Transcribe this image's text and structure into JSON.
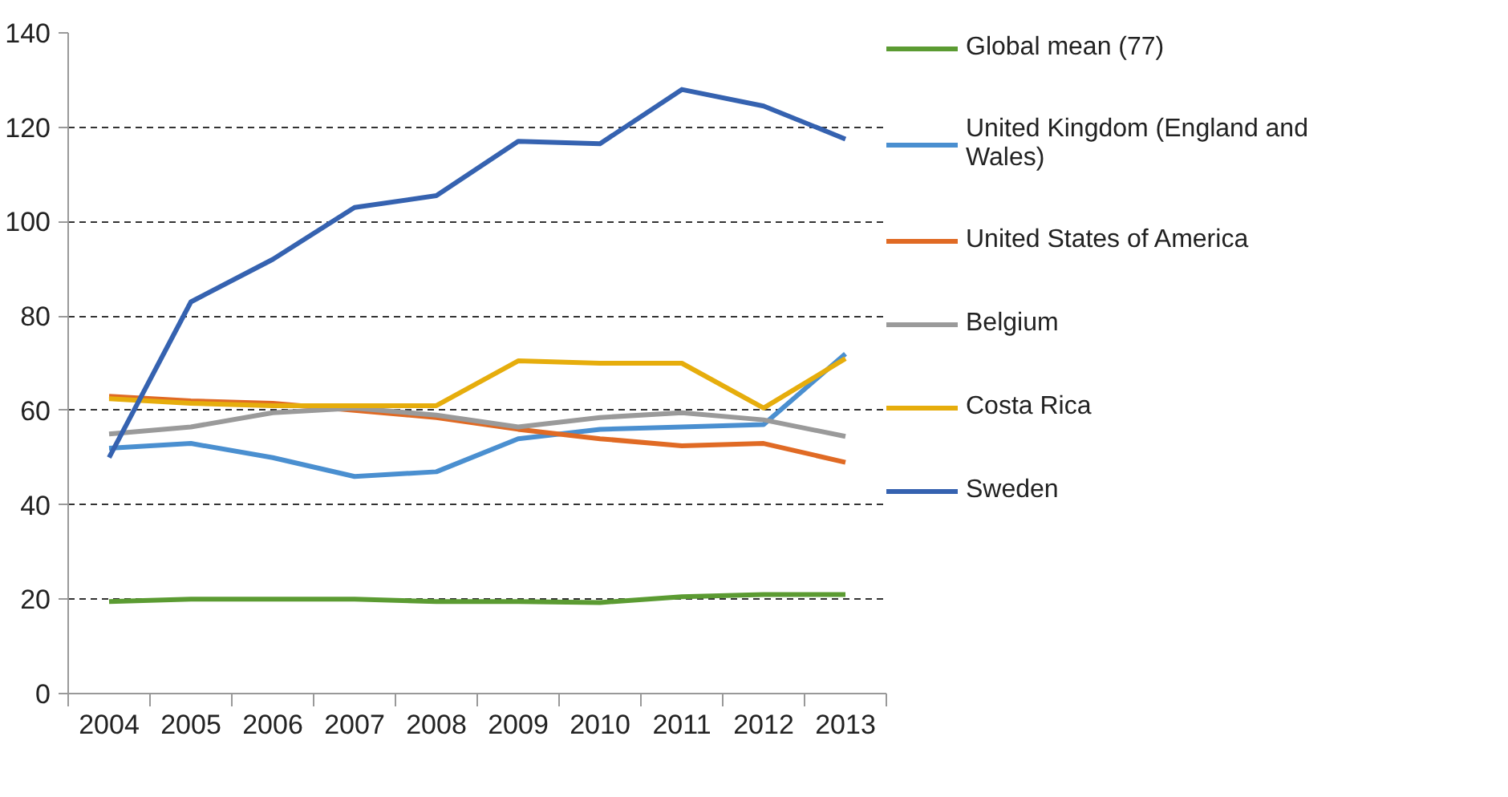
{
  "chart_data": {
    "type": "line",
    "categories": [
      "2004",
      "2005",
      "2006",
      "2007",
      "2008",
      "2009",
      "2010",
      "2011",
      "2012",
      "2013"
    ],
    "ylim": [
      0,
      140
    ],
    "yticks": [
      0,
      20,
      40,
      60,
      80,
      100,
      120,
      140
    ],
    "grid": "y",
    "legend": "right",
    "line_style": "solid",
    "series": [
      {
        "name": "Global mean (77)",
        "color": "#5b9b32",
        "values": [
          19.5,
          20,
          20,
          20,
          19.5,
          19.5,
          19.3,
          20.5,
          21,
          21
        ]
      },
      {
        "name": "United Kingdom (England and Wales)",
        "color": "#4a8fd0",
        "values": [
          52,
          53,
          50,
          46,
          47,
          54,
          56,
          56.5,
          57,
          72
        ]
      },
      {
        "name": "United States of America",
        "color": "#e06a24",
        "values": [
          63,
          62,
          61.5,
          60,
          58.5,
          56,
          54,
          52.5,
          53,
          49
        ]
      },
      {
        "name": "Belgium",
        "color": "#9a9a9a",
        "values": [
          55,
          56.5,
          59.5,
          60.5,
          59,
          56.5,
          58.5,
          59.5,
          58,
          54.5
        ]
      },
      {
        "name": "Costa Rica",
        "color": "#e6ad0c",
        "values": [
          62.5,
          61.5,
          61,
          61,
          61,
          70.5,
          70,
          70,
          60.5,
          71
        ]
      },
      {
        "name": "Sweden",
        "color": "#3562b0",
        "values": [
          50,
          83,
          92,
          103,
          105.5,
          117,
          116.5,
          128,
          124.5,
          117.5
        ]
      }
    ]
  }
}
